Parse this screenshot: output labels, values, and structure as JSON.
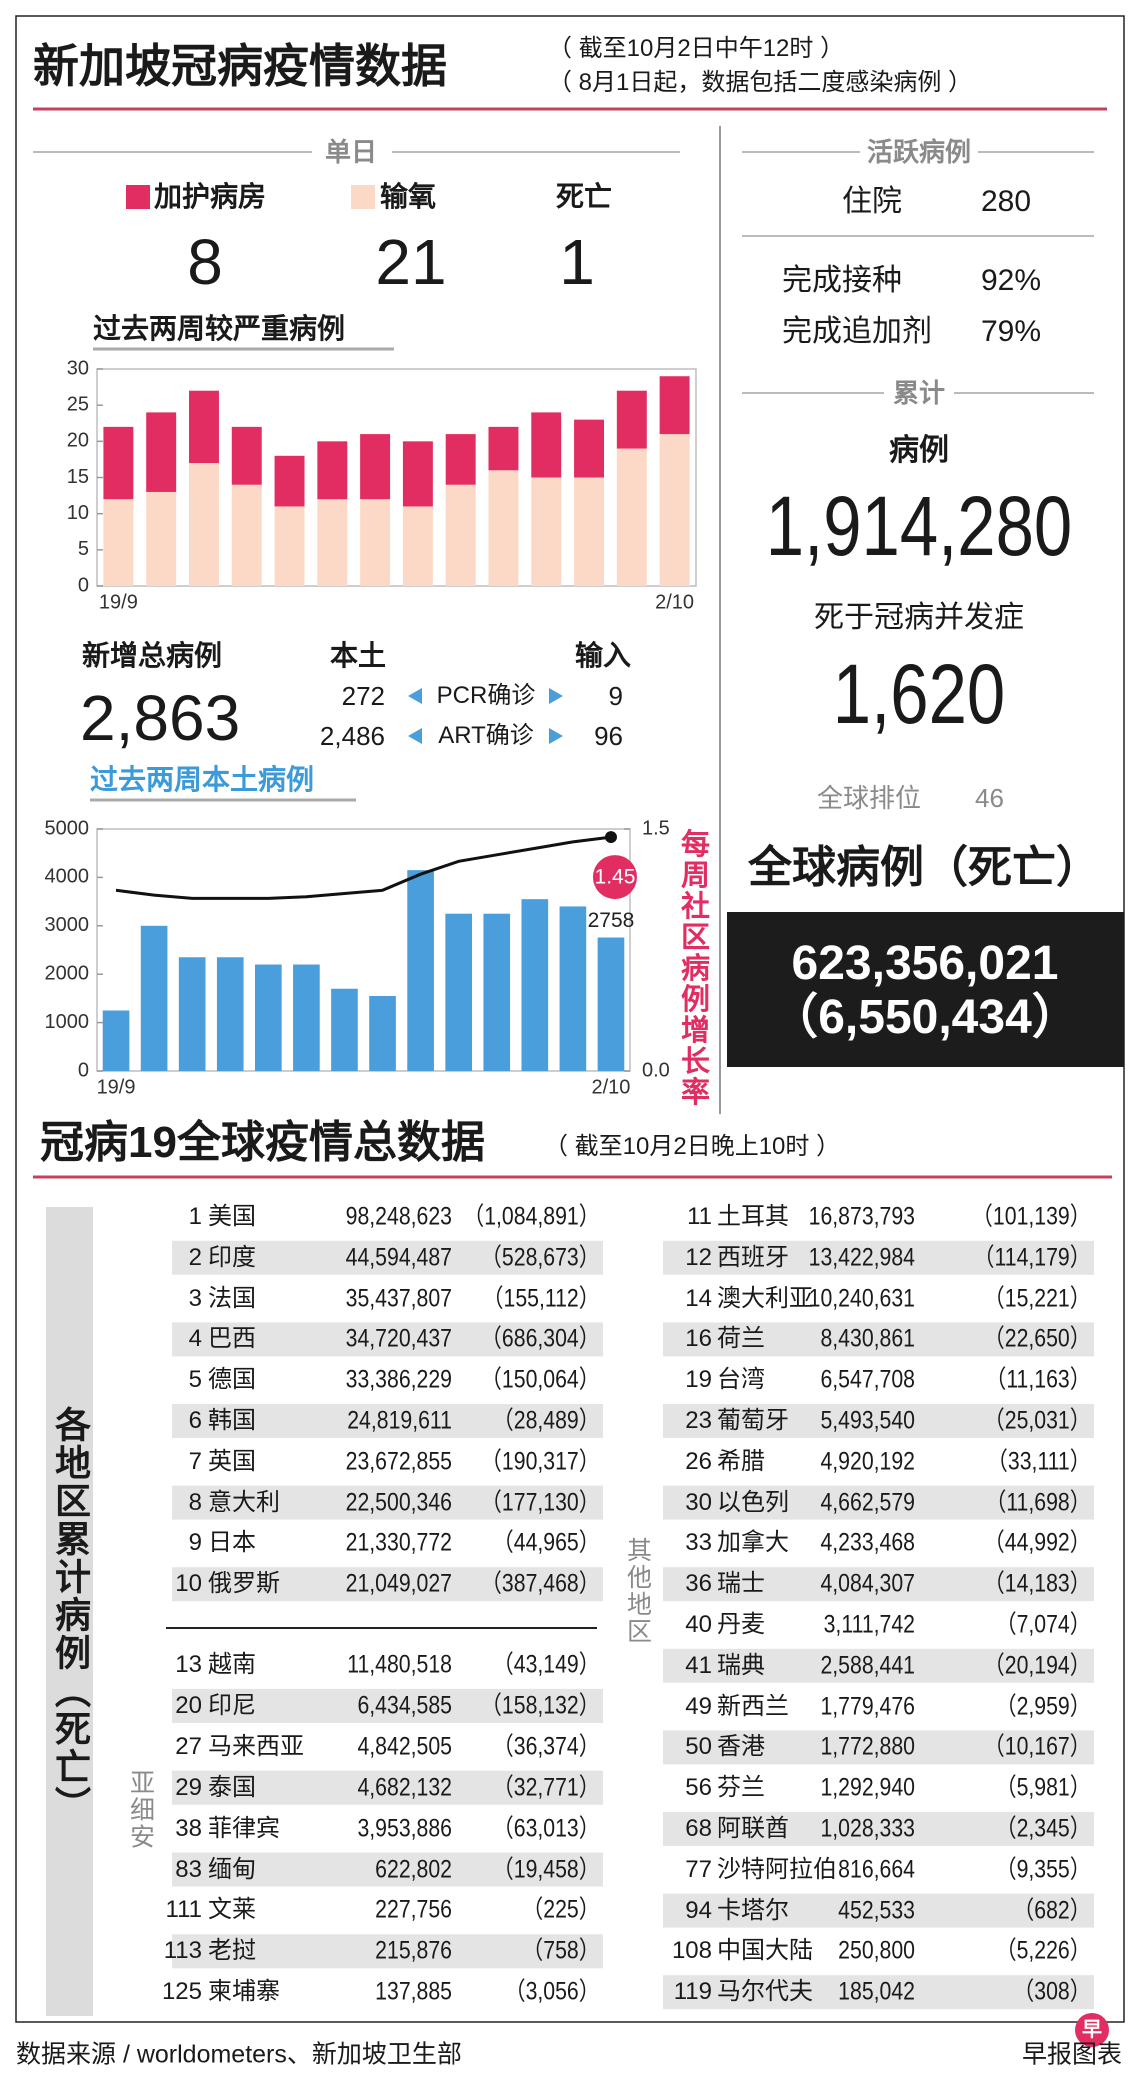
{
  "header": {
    "title": "新加坡冠病疫情数据",
    "notes": [
      "（ 截至10月2日中午12时 ）",
      "（ 8月1日起，数据包括二度感染病例 ）"
    ]
  },
  "single_day": {
    "title": "单日",
    "death_label": "死亡",
    "values": [
      8,
      21,
      1
    ]
  },
  "chart_data": [
    {
      "type": "bar",
      "stacked": true,
      "title": "过去两周较严重病例",
      "categories": [
        "19/9",
        null,
        null,
        null,
        null,
        null,
        null,
        null,
        null,
        null,
        null,
        null,
        null,
        "2/10"
      ],
      "series": [
        {
          "name": "输氧",
          "color": "#fbd9c6",
          "values": [
            12,
            13,
            17,
            14,
            11,
            12,
            12,
            11,
            14,
            16,
            15,
            15,
            19,
            21
          ]
        },
        {
          "name": "加护病房",
          "color": "#e22d62",
          "values": [
            10,
            11,
            10,
            8,
            7,
            8,
            9,
            9,
            7,
            6,
            9,
            8,
            8,
            8
          ]
        }
      ],
      "ylim": [
        0,
        30
      ],
      "yticks": [
        0,
        5,
        10,
        15,
        20,
        25,
        30
      ],
      "grid": false
    },
    {
      "type": "bar",
      "stacked": false,
      "title": "过去两周本土病例",
      "categories": [
        "19/9",
        null,
        null,
        null,
        null,
        null,
        null,
        null,
        null,
        null,
        null,
        null,
        null,
        "2/10"
      ],
      "series": [
        {
          "color": "#4a9edb",
          "values": [
            1250,
            3000,
            2350,
            2350,
            2200,
            2200,
            1700,
            1550,
            4150,
            3250,
            3250,
            3550,
            3400,
            2758
          ]
        },
        {
          "type": "line",
          "axis": "y2",
          "color": "#111111",
          "values": [
            1.12,
            1.09,
            1.07,
            1.07,
            1.07,
            1.08,
            1.1,
            1.12,
            1.22,
            1.3,
            1.34,
            1.38,
            1.42,
            1.45
          ]
        }
      ],
      "ylim": [
        0,
        5000
      ],
      "yticks": [
        0,
        1000,
        2000,
        3000,
        4000,
        5000
      ],
      "y2lim": [
        0,
        1.5
      ],
      "y2ticks": [
        {
          "value": 0,
          "label": "0.0"
        },
        1.5
      ],
      "y2_label": "每周社区病例增长率",
      "grid": false
    }
  ],
  "new_cases": {
    "title": "新增总病例",
    "total": "2,863",
    "local_label": "本土",
    "imported_label": "输入",
    "rows": [
      {
        "label": "PCR确诊",
        "local": "272",
        "imported": "9"
      },
      {
        "label": "ART确诊",
        "local": "2,486",
        "imported": "96"
      }
    ]
  },
  "summary": {
    "active_title": "活跃病例",
    "hospital_label": "住院",
    "hospital": "280",
    "vaccinated_label": "完成接种",
    "vaccinated": "92%",
    "booster_label": "完成追加剂",
    "booster": "79%",
    "cumulative_title": "累计",
    "cases_label": "病例",
    "cases": "1,914,280",
    "deaths_label": "死于冠病并发症",
    "deaths": "1,620",
    "rank_label": "全球排位",
    "rank": 46,
    "global_title": "全球病例（死亡）",
    "global_cases": "623,356,021",
    "global_deaths": "（6,550,434）"
  },
  "global_table": {
    "title": "冠病19全球疫情总数据",
    "note": "（ 截至10月2日晚上10时 ）",
    "side_label": "各地区累计病例（死亡）",
    "top": [
      [
        1,
        "美国",
        "98,248,623",
        "（1,084,891）"
      ],
      [
        2,
        "印度",
        "44,594,487",
        "（528,673）"
      ],
      [
        3,
        "法国",
        "35,437,807",
        "（155,112）"
      ],
      [
        4,
        "巴西",
        "34,720,437",
        "（686,304）"
      ],
      [
        5,
        "德国",
        "33,386,229",
        "（150,064）"
      ],
      [
        6,
        "韩国",
        "24,819,611",
        "（28,489）"
      ],
      [
        7,
        "英国",
        "23,672,855",
        "（190,317）"
      ],
      [
        8,
        "意大利",
        "22,500,346",
        "（177,130）"
      ],
      [
        9,
        "日本",
        "21,330,772",
        "（44,965）"
      ],
      [
        10,
        "俄罗斯",
        "21,049,027",
        "（387,468）"
      ]
    ],
    "asean_label": "亚细安",
    "asean": [
      [
        13,
        "越南",
        "11,480,518",
        "（43,149）"
      ],
      [
        20,
        "印尼",
        "6,434,585",
        "（158,132）"
      ],
      [
        27,
        "马来西亚",
        "4,842,505",
        "（36,374）"
      ],
      [
        29,
        "泰国",
        "4,682,132",
        "（32,771）"
      ],
      [
        38,
        "菲律宾",
        "3,953,886",
        "（63,013）"
      ],
      [
        83,
        "缅甸",
        "622,802",
        "（19,458）"
      ],
      [
        111,
        "文莱",
        "227,756",
        "（225）"
      ],
      [
        113,
        "老挝",
        "215,876",
        "（758）"
      ],
      [
        125,
        "柬埔寨",
        "137,885",
        "（3,056）"
      ]
    ],
    "other_label": "其他地区",
    "other": [
      [
        11,
        "土耳其",
        "16,873,793",
        "（101,139）"
      ],
      [
        12,
        "西班牙",
        "13,422,984",
        "（114,179）"
      ],
      [
        14,
        "澳大利亚",
        "10,240,631",
        "（15,221）"
      ],
      [
        16,
        "荷兰",
        "8,430,861",
        "（22,650）"
      ],
      [
        19,
        "台湾",
        "6,547,708",
        "（11,163）"
      ],
      [
        23,
        "葡萄牙",
        "5,493,540",
        "（25,031）"
      ],
      [
        26,
        "希腊",
        "4,920,192",
        "（33,111）"
      ],
      [
        30,
        "以色列",
        "4,662,579",
        "（11,698）"
      ],
      [
        33,
        "加拿大",
        "4,233,468",
        "（44,992）"
      ],
      [
        36,
        "瑞士",
        "4,084,307",
        "（14,183）"
      ],
      [
        40,
        "丹麦",
        "3,111,742",
        "（7,074）"
      ],
      [
        41,
        "瑞典",
        "2,588,441",
        "（20,194）"
      ],
      [
        49,
        "新西兰",
        "1,779,476",
        "（2,959）"
      ],
      [
        50,
        "香港",
        "1,772,880",
        "（10,167）"
      ],
      [
        56,
        "芬兰",
        "1,292,940",
        "（5,981）"
      ],
      [
        68,
        "阿联酋",
        "1,028,333",
        "（2,345）"
      ],
      [
        77,
        "沙特阿拉伯",
        "816,664",
        "（9,355）"
      ],
      [
        94,
        "卡塔尔",
        "452,533",
        "（682）"
      ],
      [
        108,
        "中国大陆",
        "250,800",
        "（5,226）"
      ],
      [
        119,
        "马尔代夫",
        "185,042",
        "（308）"
      ]
    ]
  },
  "footer": {
    "source": "数据来源 / worldometers、新加坡卫生部",
    "credit": "早报图表",
    "logo": "早"
  }
}
